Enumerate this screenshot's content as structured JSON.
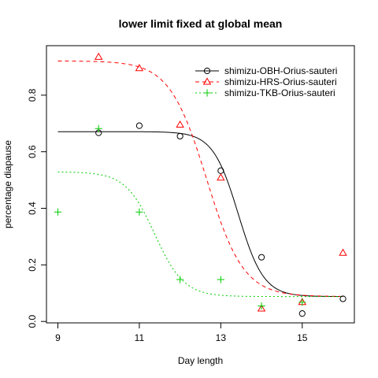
{
  "chart_data": {
    "type": "scatter",
    "title": "lower limit fixed at global mean",
    "xlabel": "Day length",
    "ylabel": "percentage diapause",
    "xlim": [
      8.72,
      16.28
    ],
    "ylim": [
      -0.005,
      0.975
    ],
    "x_ticks": [
      9,
      11,
      13,
      15
    ],
    "y_ticks": [
      0.0,
      0.2,
      0.4,
      0.6,
      0.8
    ],
    "x_tick_labels": [
      "9",
      "11",
      "13",
      "15"
    ],
    "y_tick_labels": [
      "0.0",
      "0.2",
      "0.4",
      "0.6",
      "0.8"
    ],
    "grid": false,
    "legend_position": "top-right",
    "lower_limit": 0.088,
    "series": [
      {
        "name": "shimizu-OBH-Orius-sauteri",
        "color": "#000000",
        "marker": "circle",
        "line_style": "solid",
        "x": [
          10,
          11,
          12,
          13,
          14,
          15,
          16
        ],
        "y": [
          0.667,
          0.692,
          0.655,
          0.533,
          0.227,
          0.028,
          0.08
        ],
        "fit": {
          "upper": 0.671,
          "midpoint": 13.43,
          "slope": 3.2
        }
      },
      {
        "name": "shimizu-HRS-Orius-sauteri",
        "color": "#ff0000",
        "marker": "triangle",
        "line_style": "dashed",
        "x": [
          10,
          11,
          12,
          13,
          14,
          15,
          16
        ],
        "y": [
          0.935,
          0.895,
          0.695,
          0.508,
          0.045,
          0.068,
          0.242
        ],
        "fit": {
          "upper": 0.921,
          "midpoint": 12.65,
          "slope": 2.2
        }
      },
      {
        "name": "shimizu-TKB-Orius-sauteri",
        "color": "#00cc00",
        "marker": "plus",
        "line_style": "dotted",
        "x": [
          9,
          10,
          11,
          12,
          13,
          14,
          15
        ],
        "y": [
          0.387,
          0.682,
          0.387,
          0.148,
          0.148,
          0.055,
          0.068
        ],
        "fit": {
          "upper": 0.529,
          "midpoint": 11.38,
          "slope": 2.8
        }
      }
    ]
  }
}
